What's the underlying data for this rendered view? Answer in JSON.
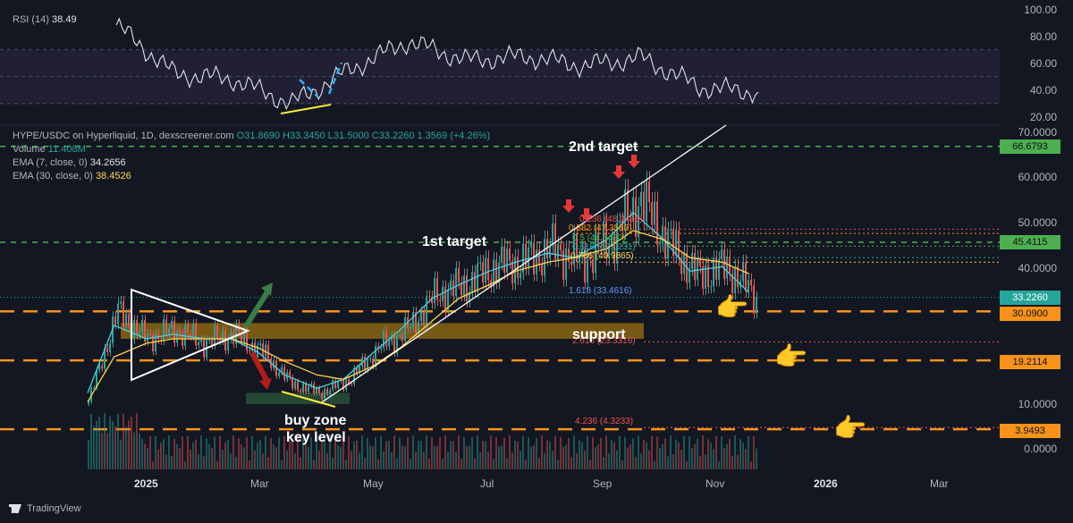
{
  "rsi_panel": {
    "label": "RSI (14)",
    "value": "38.49",
    "axis": [
      "100.00",
      "80.00",
      "60.00",
      "40.00",
      "20.00"
    ]
  },
  "legend": {
    "pair": "HYPE/USDC on Hyperliquid, 1D, dexscreener.com",
    "ohlc": "O31.8690 H33.3450 L31.5000 C33.2260 1.3569 (+4.26%)",
    "volume_label": "Volume",
    "volume_value": "11.408M",
    "ema7_label": "EMA (7, close, 0)",
    "ema7_value": "34.2656",
    "ema30_label": "EMA (30, close, 0)",
    "ema30_value": "38.4526"
  },
  "price_axis": [
    "70.0000",
    "60.0000",
    "50.0000",
    "40.0000",
    "10.0000",
    "0.0000"
  ],
  "price_tags": [
    {
      "value": "66.6793",
      "color": "#4caf50"
    },
    {
      "value": "45.4115",
      "color": "#4caf50"
    },
    {
      "value": "33.2260",
      "color": "#26a69a"
    },
    {
      "value": "30.0900",
      "color": "#f7931a"
    },
    {
      "value": "19.2114",
      "color": "#f7931a"
    },
    {
      "value": "3.9493",
      "color": "#f7931a"
    }
  ],
  "time_axis": [
    {
      "label": "2025",
      "year": true
    },
    {
      "label": "Mar",
      "year": false
    },
    {
      "label": "May",
      "year": false
    },
    {
      "label": "Jul",
      "year": false
    },
    {
      "label": "Sep",
      "year": false
    },
    {
      "label": "Nov",
      "year": false
    },
    {
      "label": "2026",
      "year": true
    },
    {
      "label": "Mar",
      "year": false
    }
  ],
  "annotations": {
    "second_target": "2nd target",
    "first_target": "1st target",
    "support": "support",
    "buy_zone": "buy zone",
    "key_level": "key level"
  },
  "fib_labels": [
    "0.236 (48.3433)",
    "0.382 (47.3583)",
    "0.5 (44.5480)",
    "0.618 (42.0231)",
    "0.786 (40.9865)",
    "1.618 (33.4616)",
    "2.618 (23.3316)",
    "4.236 (4.3233)"
  ],
  "branding": "TradingView",
  "colors": {
    "background": "#131722",
    "up": "#26a69a",
    "down": "#ef5350",
    "ema7": "#4dd0e1",
    "ema30": "#ffd54f",
    "rsi": "#e0e3eb",
    "target_line": "#4caf50",
    "support_line": "#f7931a"
  },
  "chart_data": [
    {
      "type": "line",
      "title": "RSI (14)",
      "ylim": [
        20,
        100
      ],
      "bands": [
        30,
        50,
        70
      ],
      "x": [
        "2024-12",
        "2025-01",
        "2025-02",
        "2025-03",
        "2025-04",
        "2025-05",
        "2025-06",
        "2025-07",
        "2025-08",
        "2025-09",
        "2025-10",
        "2025-11"
      ],
      "series": [
        {
          "name": "RSI (14)",
          "values": [
            88,
            52,
            48,
            30,
            55,
            76,
            62,
            65,
            58,
            64,
            42,
            38.49
          ]
        }
      ]
    },
    {
      "type": "line",
      "title": "HYPE/USDC on Hyperliquid, 1D, dexscreener.com",
      "ylim": [
        0,
        70
      ],
      "x": [
        "2024-12-01",
        "2024-12-15",
        "2025-01-01",
        "2025-01-15",
        "2025-02-01",
        "2025-02-15",
        "2025-03-01",
        "2025-03-15",
        "2025-04-01",
        "2025-04-15",
        "2025-05-01",
        "2025-05-15",
        "2025-06-01",
        "2025-06-15",
        "2025-07-01",
        "2025-07-15",
        "2025-08-01",
        "2025-08-15",
        "2025-09-01",
        "2025-09-15",
        "2025-10-01",
        "2025-10-15",
        "2025-11-01",
        "2025-11-15"
      ],
      "series": [
        {
          "name": "HYPE/USDC",
          "values": [
            10,
            30,
            24,
            26,
            23,
            25,
            21,
            14,
            12,
            15,
            22,
            26,
            34,
            36,
            40,
            41,
            44,
            41,
            46,
            55,
            45,
            38,
            40,
            33.226
          ]
        },
        {
          "name": "EMA (7, close, 0)",
          "values": [
            12,
            27,
            24,
            25,
            24,
            24,
            21,
            16,
            13,
            15,
            21,
            26,
            33,
            36,
            39,
            41,
            43,
            42,
            46,
            52,
            46,
            39,
            40,
            34.2656
          ]
        },
        {
          "name": "EMA (30, close, 0)",
          "values": [
            10,
            20,
            23,
            24,
            24,
            24,
            22,
            19,
            16,
            15,
            18,
            22,
            28,
            33,
            36,
            39,
            41,
            42,
            44,
            48,
            46,
            42,
            41,
            38.4526
          ]
        }
      ],
      "horizontal_levels": [
        66.6793,
        45.4115,
        30.09,
        19.2114,
        3.9493
      ],
      "support_zone": [
        24,
        27.5
      ],
      "buy_zone": [
        9.5,
        12
      ]
    }
  ]
}
